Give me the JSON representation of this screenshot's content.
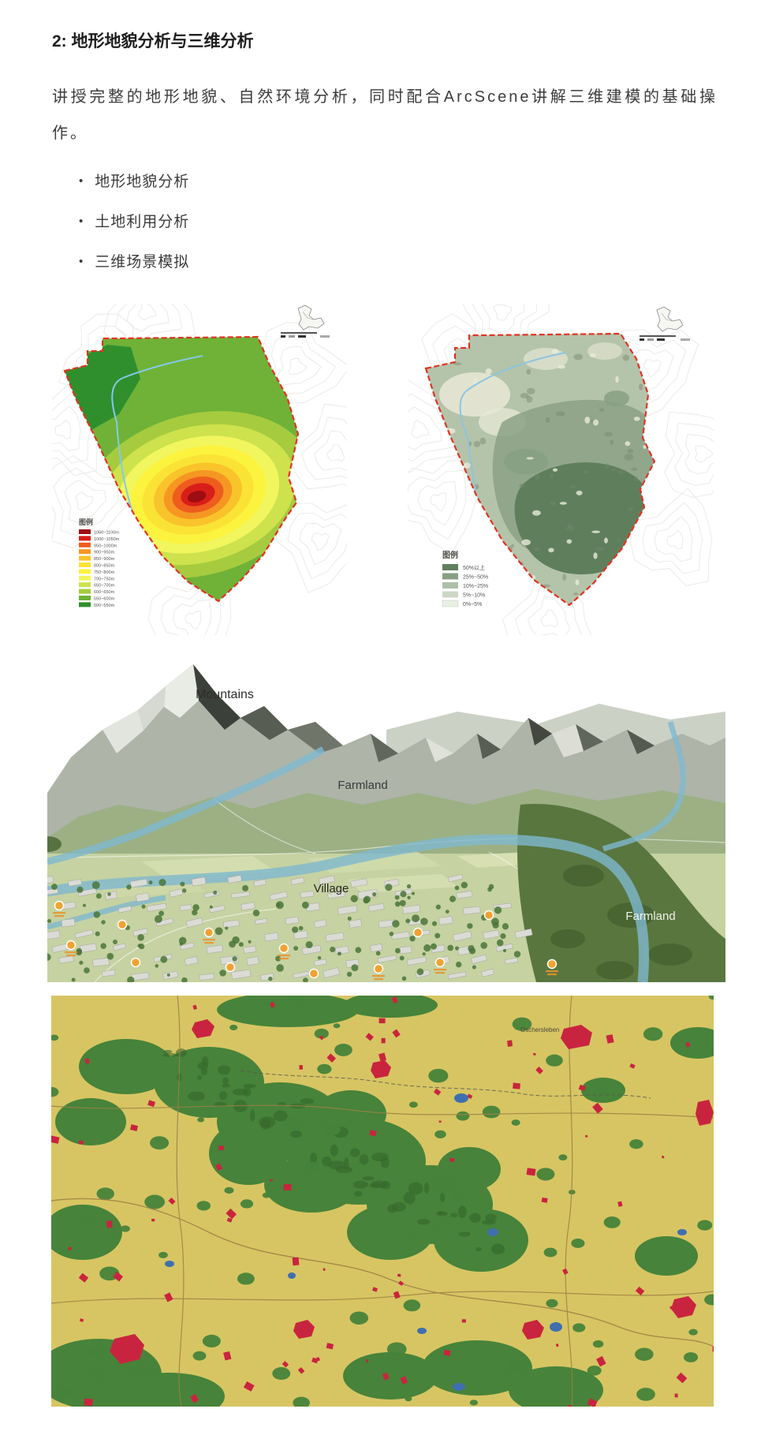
{
  "heading": "2: 地形地貌分析与三维分析",
  "paragraph": "讲授完整的地形地貌、自然环境分析，同时配合ArcScene讲解三维建模的基础操作。",
  "bullets": [
    "地形地貌分析",
    "土地利用分析",
    "三维场景模拟"
  ],
  "elevation_map": {
    "legend_title": "图例",
    "boundary_color": "#e23222",
    "river_color": "#86c8e8",
    "legend": [
      {
        "label": "1050~1100m",
        "color": "#9e0d12"
      },
      {
        "label": "1000~1050m",
        "color": "#d81e19"
      },
      {
        "label": "950~1000m",
        "color": "#ee5c1e"
      },
      {
        "label": "900~950m",
        "color": "#f59722"
      },
      {
        "label": "850~900m",
        "color": "#f9c32b"
      },
      {
        "label": "800~850m",
        "color": "#fbe336"
      },
      {
        "label": "750~800m",
        "color": "#fcf33f"
      },
      {
        "label": "700~750m",
        "color": "#f1f65e"
      },
      {
        "label": "650~700m",
        "color": "#cde24d"
      },
      {
        "label": "600~650m",
        "color": "#a6cb3f"
      },
      {
        "label": "550~600m",
        "color": "#6fb237"
      },
      {
        "label": "500~550m",
        "color": "#2f8f2d"
      }
    ]
  },
  "slope_map": {
    "legend_title": "图例",
    "boundary_color": "#e23222",
    "river_color": "#8fc4de",
    "legend": [
      {
        "label": "50%以上",
        "color": "#5f7f5c"
      },
      {
        "label": "25%~50%",
        "color": "#87a083"
      },
      {
        "label": "10%~25%",
        "color": "#aebfa9"
      },
      {
        "label": "5%~10%",
        "color": "#ccd8c6"
      },
      {
        "label": "0%~5%",
        "color": "#eaefe3"
      }
    ]
  },
  "terrain_view": {
    "labels": {
      "mountains": "Mountains",
      "farmland_center": "Farmland",
      "village": "Village",
      "farmland_right": "Farmland"
    }
  },
  "landuse_map": {
    "town_label": "Oschersleben",
    "palette": {
      "farmland": "#d7c563",
      "forest": "#47833a",
      "settlement": "#c9243f",
      "water": "#3f6fae",
      "road": "#9b8045"
    }
  }
}
